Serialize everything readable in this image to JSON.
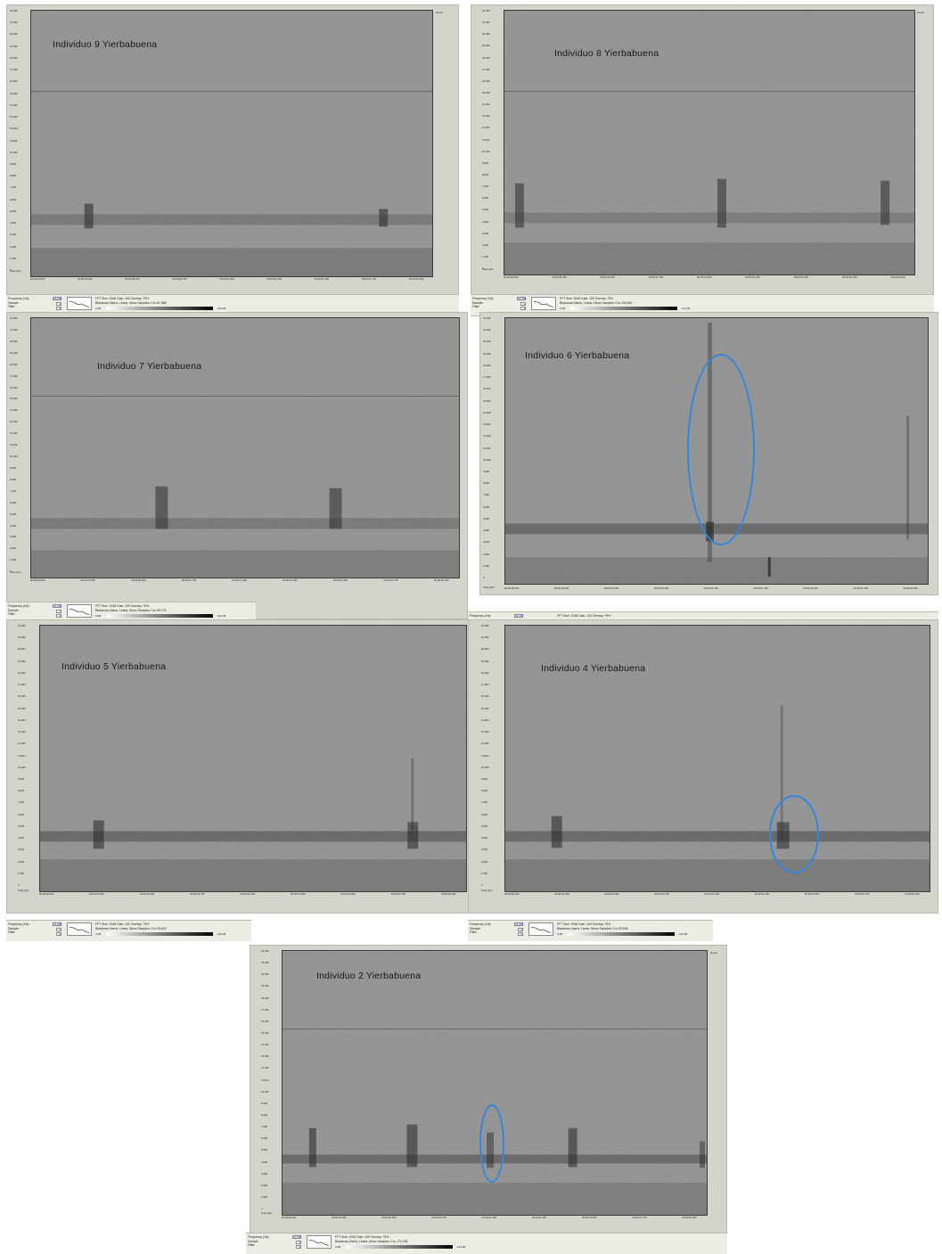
{
  "panels": [
    {
      "title": "Individuo 9 Yierbabuena",
      "status": {
        "freq_value": "22,050",
        "scale_value": "1",
        "filter_value": "0",
        "info_line1": "FFT Size: 2048  Gain: 100  Overlap: 75%",
        "info_line2": "Blackman-Harris, Linear, Mono  Samples: 0 to 51,888",
        "grad_min": "0 dB",
        "grad_max": "-110 dB"
      }
    },
    {
      "title": "Individuo 8 Yierbabuena",
      "status": {
        "freq_value": "22,050",
        "scale_value": "1",
        "filter_value": "0",
        "info_line1": "FFT Size: 2048  Gain: 100  Overlap: 75%",
        "info_line2": "Blackman-Harris, Linear, Mono  Samples: 0 to 133,500",
        "grad_min": "0 dB",
        "grad_max": "-110 dB"
      }
    },
    {
      "title": "Individuo 7 Yierbabuena",
      "status": {
        "freq_value": "22,050",
        "scale_value": "1",
        "filter_value": "0",
        "info_line1": "FFT Size: 2048  Gain: 100  Overlap: 75%",
        "info_line2": "Blackman-Harris, Linear, Mono  Samples: 0 to 99,778",
        "grad_min": "0 dB",
        "grad_max": "-110 dB"
      }
    },
    {
      "title": "Individuo 6 Yierbabuena",
      "status": {
        "freq_value": "22,050",
        "scale_value": "1",
        "filter_value": "0",
        "info_line1": "FFT Size: 2048  Gain: 100  Overlap: 75%",
        "info_line2": "",
        "grad_min": "",
        "grad_max": ""
      }
    },
    {
      "title": "Individuo 5 Yierbabuena",
      "status": {
        "freq_value": "22,050",
        "scale_value": "1",
        "filter_value": "0",
        "info_line1": "FFT Size: 2048  Gain: 100  Overlap: 75%",
        "info_line2": "Blackman-Harris, Linear, Mono  Samples: 0 to 99,642",
        "grad_min": "0 dB",
        "grad_max": "-110 dB"
      }
    },
    {
      "title": "Individuo 4 Yierbabuena",
      "status": {
        "freq_value": "22,050",
        "scale_value": "1",
        "filter_value": "0",
        "info_line1": "FFT Size: 2048  Gain: 100  Overlap: 75%",
        "info_line2": "Blackman-Harris, Linear, Mono  Samples: 0 to 93,538",
        "grad_min": "0 dB",
        "grad_max": "-110 dB"
      }
    },
    {
      "title": "Individuo 2 Yierbabuena",
      "status": {
        "freq_value": "22,050",
        "scale_value": "1",
        "filter_value": "0",
        "info_line1": "FFT Size: 2048  Gain: 100  Overlap: 75%",
        "info_line2": "Blackman-Harris, Linear, Mono  Samples: 0 to 170,036",
        "grad_min": "0 dB",
        "grad_max": "-110 dB"
      }
    }
  ],
  "status_labels": {
    "frequency": "Frequency (Hz):",
    "scale": "Sample:",
    "filter": "Filter:"
  },
  "axis": {
    "freq_label": "Freq (Hz)",
    "unit_label": "Hours",
    "y_ticks": [
      "22,050",
      "21,000",
      "20,000",
      "19,000",
      "18,000",
      "17,000",
      "16,000",
      "15,000",
      "14,000",
      "13,000",
      "12,000",
      "11,000",
      "10,000",
      "9,000",
      "8,000",
      "7,000",
      "6,000",
      "5,000",
      "4,000",
      "3,000",
      "2,000",
      "1,000",
      "0"
    ],
    "x_ticks": [
      "00:00:00.000",
      "00:00:00.250",
      "00:00:00.500",
      "00:00:00.750",
      "00:00:01.000",
      "00:00:01.250",
      "00:00:01.500",
      "00:00:01.750",
      "00:00:02.000"
    ]
  },
  "annotations": {
    "color": "#2f87e0",
    "count": 3
  }
}
